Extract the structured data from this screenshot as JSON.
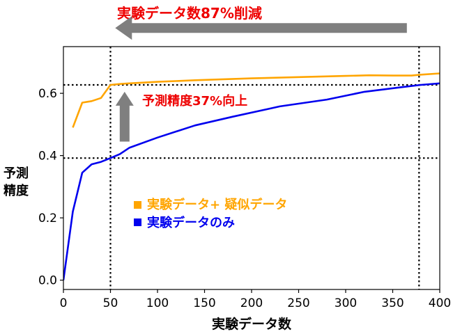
{
  "chart_data": {
    "type": "line",
    "xlabel": "実験データ数",
    "ylabel_lines": [
      "予測",
      "精度"
    ],
    "xlim": [
      0,
      400
    ],
    "ylim": [
      -0.03,
      0.75
    ],
    "xticks": [
      0,
      50,
      100,
      150,
      200,
      250,
      300,
      350,
      400
    ],
    "yticks": [
      0.0,
      0.2,
      0.4,
      0.6
    ],
    "ytick_labels": [
      "0.0",
      "0.2",
      "0.4",
      "0.6"
    ],
    "legend_position": "center-left",
    "series": [
      {
        "name": "実験データ+ 疑似データ",
        "color": "#FFA500",
        "x": [
          10,
          20,
          30,
          40,
          50,
          60,
          70,
          100,
          140,
          200,
          250,
          300,
          325,
          350,
          370,
          380,
          400
        ],
        "y": [
          0.49,
          0.57,
          0.575,
          0.585,
          0.627,
          0.63,
          0.632,
          0.637,
          0.642,
          0.648,
          0.652,
          0.656,
          0.658,
          0.657,
          0.657,
          0.66,
          0.664
        ]
      },
      {
        "name": "実験データのみ",
        "color": "#0000EE",
        "x": [
          0,
          10,
          20,
          30,
          40,
          50,
          60,
          70,
          100,
          140,
          180,
          230,
          280,
          320,
          360,
          380,
          400
        ],
        "y": [
          0.0,
          0.22,
          0.345,
          0.372,
          0.38,
          0.392,
          0.405,
          0.425,
          0.458,
          0.497,
          0.525,
          0.558,
          0.58,
          0.605,
          0.62,
          0.627,
          0.632
        ]
      }
    ],
    "reference_lines": {
      "vertical_x": [
        50,
        378
      ],
      "horizontal_y": [
        0.392,
        0.627
      ]
    },
    "annotations": {
      "top_label": "実験データ数87%削減",
      "mid_label": "予測精度37%向上",
      "top_arrow": {
        "from_x": 365,
        "to_x": 55,
        "y": 0.81
      },
      "up_arrow": {
        "x": 65,
        "from_y": 0.445,
        "to_y": 0.605
      }
    },
    "colors": {
      "annotation_red": "#EE0000",
      "arrow_gray": "#7F7F7F",
      "axis": "#000000"
    }
  }
}
